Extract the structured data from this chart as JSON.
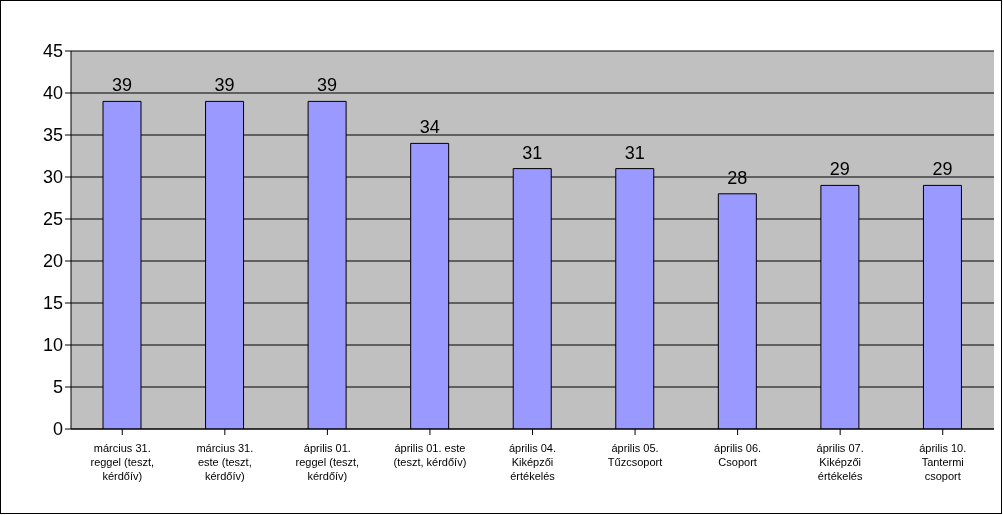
{
  "chart_data": {
    "type": "bar",
    "categories": [
      "március 31. reggel (teszt, kérdőív)",
      "március 31. este (teszt, kérdőív)",
      "április 01. reggel (teszt, kérdőív)",
      "április 01. este (teszt, kérdőív)",
      "április 04. Kiképzői értékelés",
      "április 05. Tűzcsoport",
      "április 06. Csoport",
      "április 07. Kiképzői értékelés",
      "április 10. Tantermi csoport"
    ],
    "values": [
      39,
      39,
      39,
      34,
      31,
      31,
      28,
      29,
      29
    ],
    "color": "#9999ff",
    "ylim": [
      0,
      45
    ],
    "yticks": [
      0,
      5,
      10,
      15,
      20,
      25,
      30,
      35,
      40,
      45
    ],
    "grid": "y",
    "data_labels": true
  }
}
